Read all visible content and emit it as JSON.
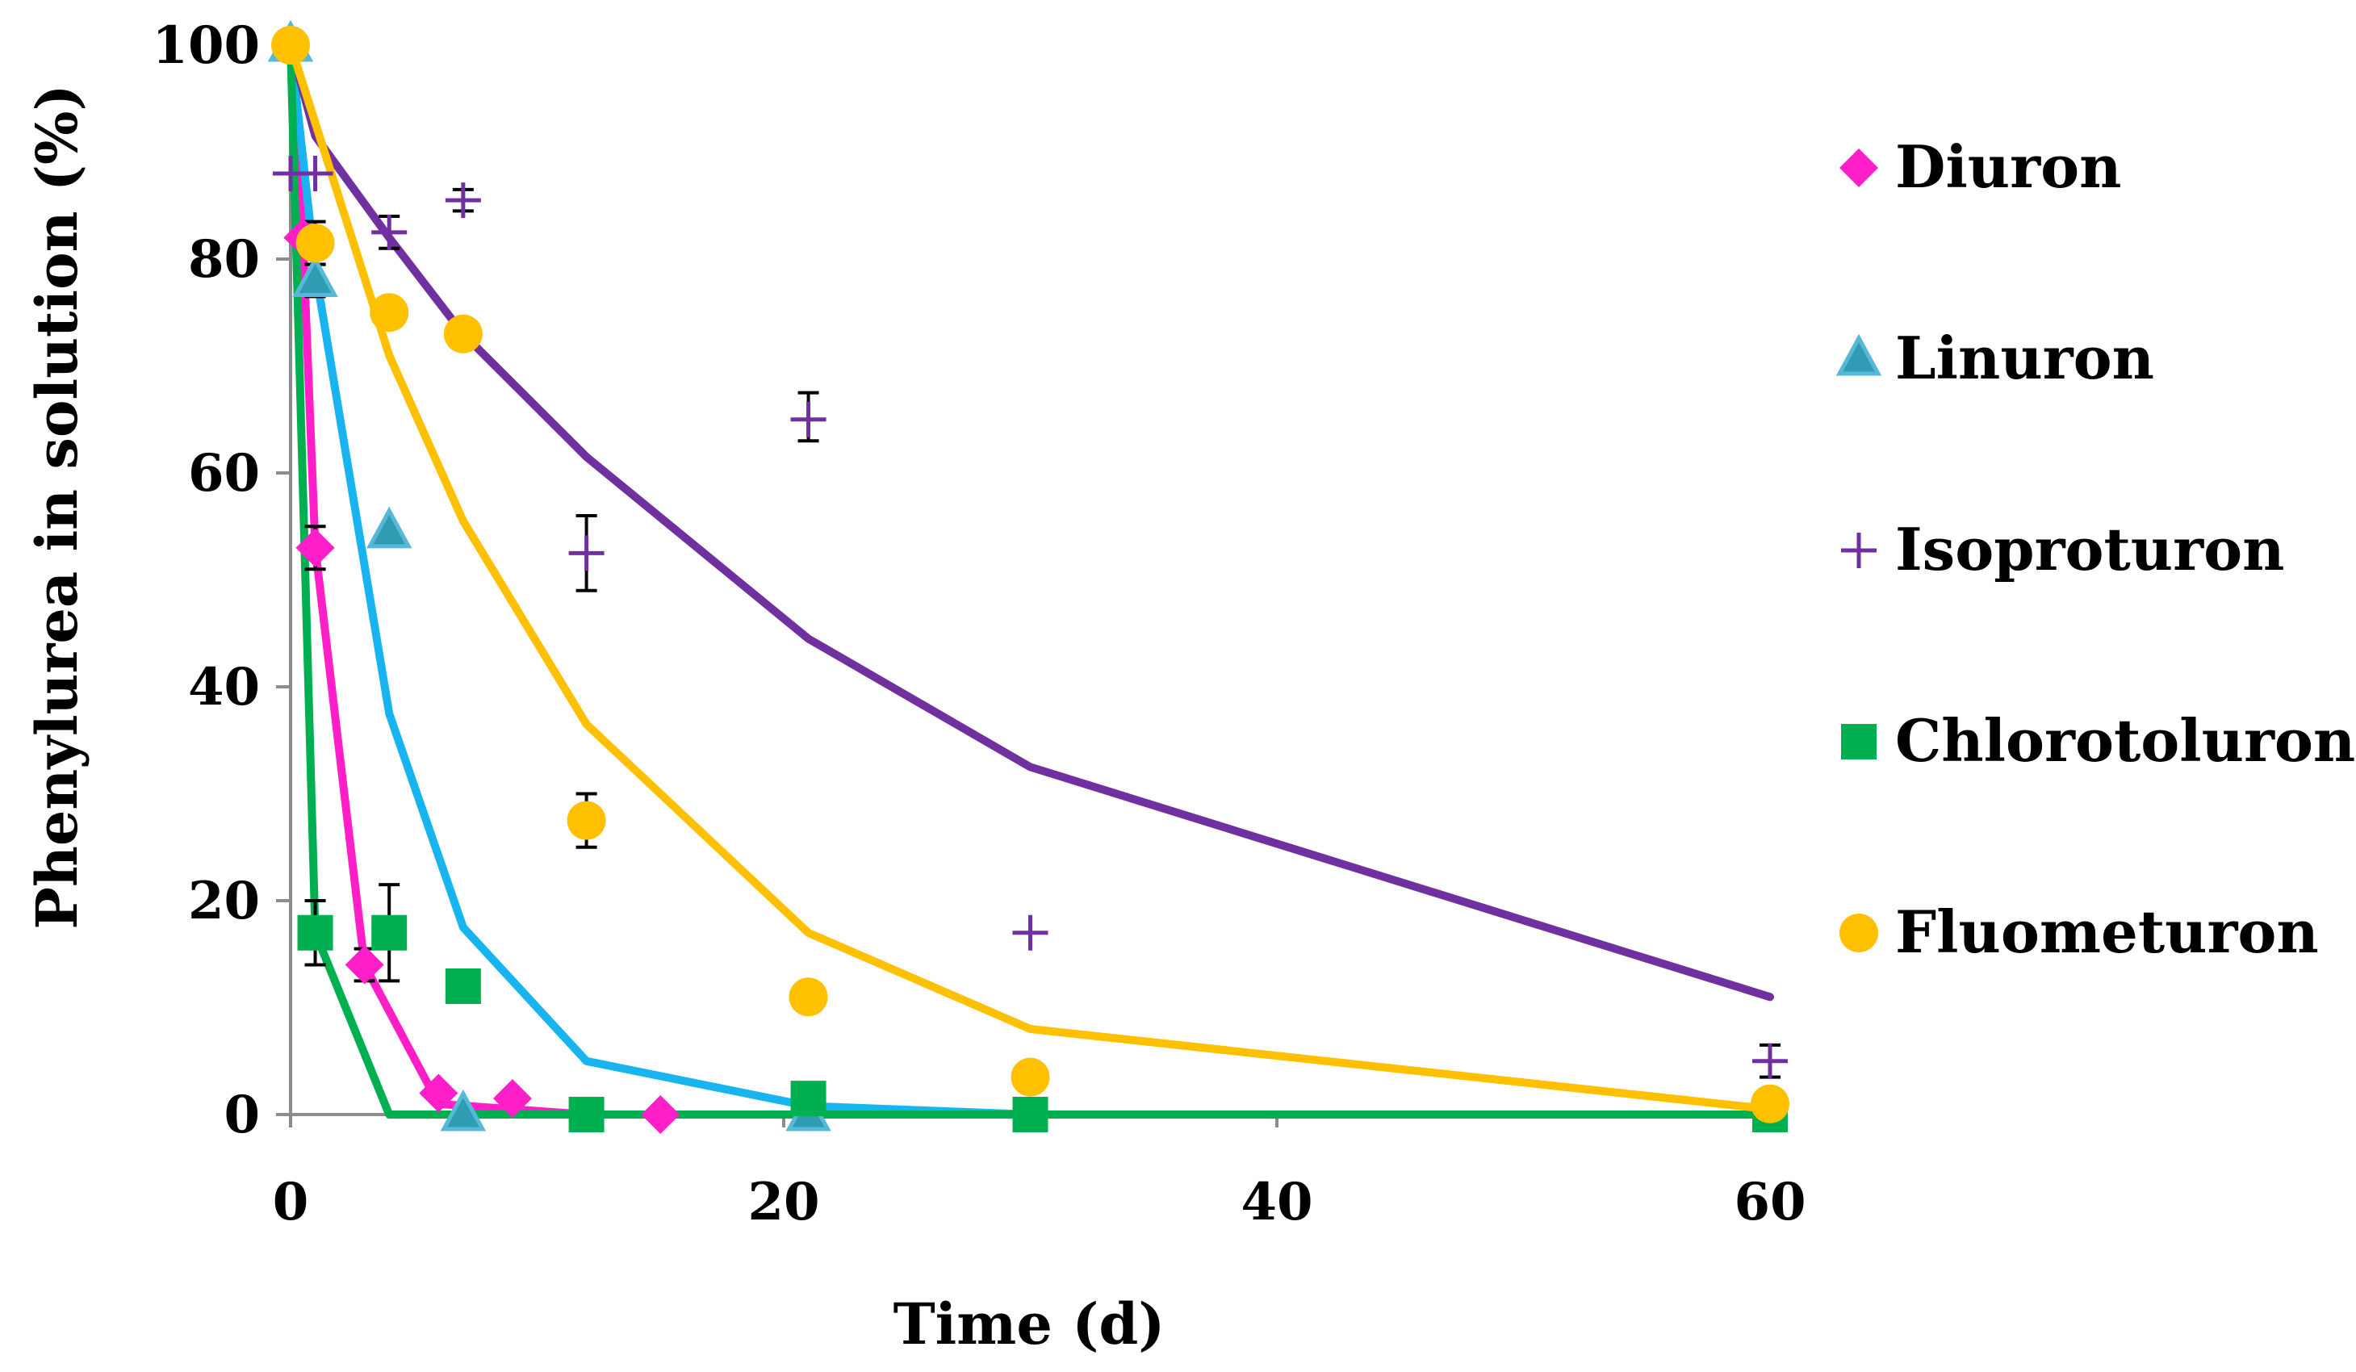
{
  "chart_data": {
    "type": "scatter",
    "title": "",
    "xlabel": "Time (d)",
    "ylabel": "Phenylurea in solution (%)",
    "xlim": [
      0,
      60
    ],
    "ylim": [
      0,
      100
    ],
    "xticks": [
      0,
      20,
      40,
      60
    ],
    "yticks": [
      0,
      20,
      40,
      60,
      80,
      100
    ],
    "x_tick_labels": [
      "0",
      "20",
      "40",
      "60"
    ],
    "y_tick_labels": [
      "0",
      "20",
      "40",
      "60",
      "80",
      "100"
    ],
    "legend_position": "right",
    "series": [
      {
        "name": "Diuron",
        "marker": "diamond",
        "color": "#ff1fc8",
        "points": [
          [
            0,
            100
          ],
          [
            0.5,
            82
          ],
          [
            1,
            53
          ],
          [
            3,
            14
          ],
          [
            6,
            2
          ],
          [
            9,
            1.5
          ],
          [
            15,
            0
          ]
        ],
        "error_bars": [
          {
            "x": 1,
            "low": 51,
            "high": 55
          },
          {
            "x": 3,
            "low": 12.5,
            "high": 15.5
          }
        ],
        "model": [
          [
            0,
            100
          ],
          [
            0.5,
            82
          ],
          [
            1,
            53
          ],
          [
            3,
            14
          ],
          [
            6,
            1
          ],
          [
            12,
            0
          ],
          [
            60,
            0
          ]
        ]
      },
      {
        "name": "Linuron",
        "marker": "triangle",
        "color": "#4aa3c8",
        "points": [
          [
            0,
            100
          ],
          [
            1,
            78
          ],
          [
            4,
            54.5
          ],
          [
            7,
            0
          ],
          [
            21,
            0
          ]
        ],
        "error_bars": [
          {
            "x": 1,
            "low": 76.5,
            "high": 79.5
          }
        ],
        "model": [
          [
            0,
            100
          ],
          [
            1,
            79
          ],
          [
            4,
            37.5
          ],
          [
            7,
            17.5
          ],
          [
            12,
            5
          ],
          [
            21,
            0.8
          ],
          [
            30,
            0
          ],
          [
            60,
            0
          ]
        ],
        "model_color": "#18b4f0"
      },
      {
        "name": "Isoproturon",
        "marker": "plus",
        "color": "#7030a0",
        "points": [
          [
            0,
            88
          ],
          [
            1,
            88
          ],
          [
            4,
            82.5
          ],
          [
            7,
            85.5
          ],
          [
            12,
            52.5
          ],
          [
            21,
            65
          ],
          [
            30,
            17
          ],
          [
            60,
            5
          ]
        ],
        "error_bars": [
          {
            "x": 4,
            "low": 81,
            "high": 84
          },
          {
            "x": 7,
            "low": 84.5,
            "high": 86.5
          },
          {
            "x": 12,
            "low": 49,
            "high": 56
          },
          {
            "x": 21,
            "low": 63,
            "high": 67.5
          },
          {
            "x": 60,
            "low": 3.5,
            "high": 6.5
          }
        ],
        "model": [
          [
            0,
            100
          ],
          [
            1,
            91.5
          ],
          [
            4,
            82
          ],
          [
            7,
            73
          ],
          [
            12,
            61.5
          ],
          [
            21,
            44.5
          ],
          [
            30,
            32.5
          ],
          [
            60,
            11
          ]
        ]
      },
      {
        "name": "Chlorotoluron",
        "marker": "square",
        "color": "#00b050",
        "points": [
          [
            1,
            17
          ],
          [
            4,
            17
          ],
          [
            7,
            12
          ],
          [
            12,
            0
          ],
          [
            21,
            1.5
          ],
          [
            30,
            0
          ],
          [
            60,
            0
          ]
        ],
        "error_bars": [
          {
            "x": 1,
            "low": 14,
            "high": 20
          },
          {
            "x": 4,
            "low": 12.5,
            "high": 21.5
          }
        ],
        "model": [
          [
            0,
            100
          ],
          [
            1,
            17
          ],
          [
            4,
            0
          ],
          [
            60,
            0
          ]
        ],
        "model_color": "#00b050"
      },
      {
        "name": "Fluometuron",
        "marker": "circle",
        "color": "#ffc000",
        "points": [
          [
            0,
            100
          ],
          [
            1,
            81.5
          ],
          [
            4,
            75
          ],
          [
            7,
            73
          ],
          [
            12,
            27.5
          ],
          [
            21,
            11
          ],
          [
            30,
            3.5
          ],
          [
            60,
            1
          ]
        ],
        "error_bars": [
          {
            "x": 1,
            "low": 79.5,
            "high": 83.5
          },
          {
            "x": 12,
            "low": 25,
            "high": 30
          }
        ],
        "model": [
          [
            0,
            100
          ],
          [
            4,
            71
          ],
          [
            7,
            55.5
          ],
          [
            12,
            36.5
          ],
          [
            21,
            17
          ],
          [
            30,
            8
          ],
          [
            60,
            0.5
          ]
        ]
      }
    ]
  }
}
